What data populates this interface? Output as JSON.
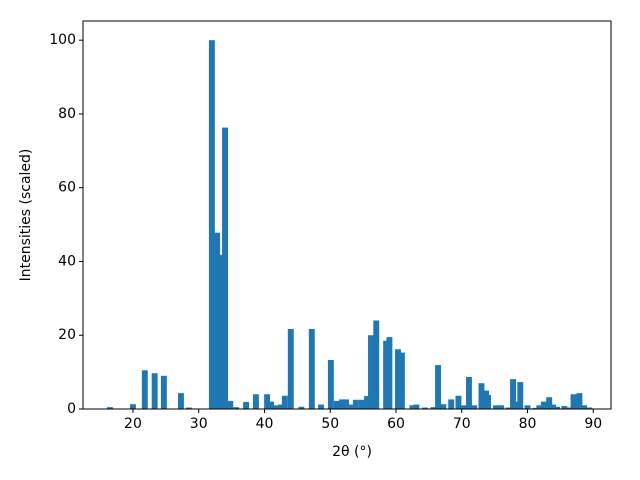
{
  "chart_data": {
    "type": "bar",
    "xlabel": "2θ (°)",
    "ylabel": "Intensities (scaled)",
    "color": "#1f77b4",
    "x": [
      16.5,
      20.0,
      21.8,
      23.3,
      24.7,
      27.3,
      28.5,
      32.0,
      32.8,
      33.4,
      34.0,
      34.8,
      35.7,
      37.2,
      38.7,
      40.4,
      41.0,
      41.6,
      42.5,
      43.1,
      44.0,
      45.6,
      47.2,
      48.6,
      50.1,
      51.0,
      51.8,
      52.4,
      53.3,
      53.9,
      54.8,
      55.6,
      56.2,
      57.0,
      58.5,
      59.0,
      60.3,
      60.9,
      62.5,
      63.1,
      64.4,
      65.7,
      66.4,
      67.2,
      68.4,
      69.5,
      70.4,
      71.1,
      71.9,
      73.0,
      73.7,
      74.0,
      75.2,
      76.0,
      77.1,
      77.8,
      78.3,
      78.9,
      80.0,
      81.2,
      81.8,
      82.5,
      83.3,
      83.9,
      84.5,
      85.6,
      86.4,
      87.0,
      87.9,
      88.6,
      89.4
    ],
    "values": [
      0.5,
      1.3,
      10.5,
      9.7,
      9.0,
      4.3,
      0.4,
      100,
      47.8,
      41.8,
      76.3,
      2.2,
      0.5,
      1.9,
      4.0,
      4.0,
      2.0,
      1.0,
      1.2,
      3.6,
      21.7,
      0.6,
      21.7,
      1.2,
      13.3,
      2.2,
      2.6,
      2.6,
      1.2,
      2.5,
      2.5,
      3.5,
      20.0,
      24.0,
      18.5,
      19.5,
      16.2,
      15.3,
      1.0,
      1.2,
      0.4,
      0.5,
      11.9,
      1.3,
      2.6,
      3.6,
      1.0,
      8.7,
      1.0,
      7.0,
      5.0,
      3.8,
      1.0,
      1.0,
      0.4,
      8.1,
      2.0,
      7.3,
      1.0,
      0.3,
      1.0,
      2.0,
      3.2,
      1.2,
      0.6,
      0.8,
      0.4,
      4.0,
      4.3,
      1.0,
      0.4
    ],
    "xlim": [
      12.4,
      92.7
    ],
    "ylim": [
      0,
      105.2
    ],
    "xticks": [
      20,
      30,
      40,
      50,
      60,
      70,
      80,
      90
    ],
    "yticks": [
      0,
      20,
      40,
      60,
      80,
      100
    ]
  }
}
